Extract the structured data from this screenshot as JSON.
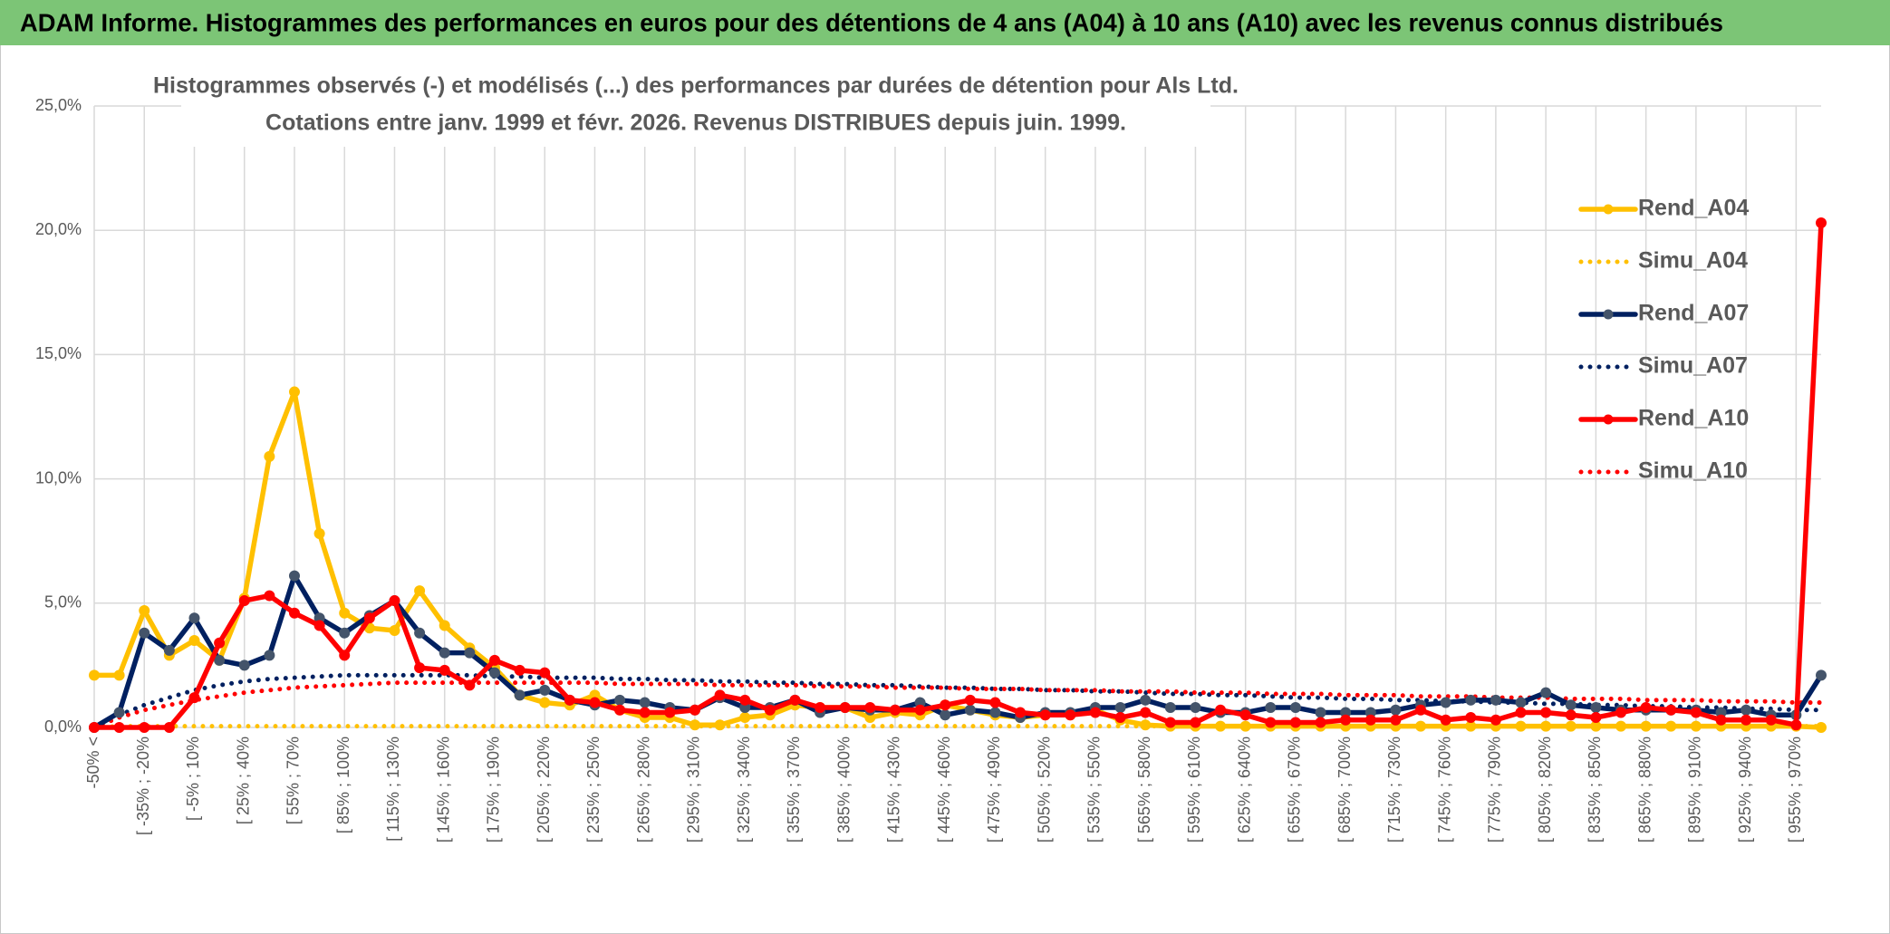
{
  "header": {
    "title": "ADAM Informe. Histogrammes des performances en euros pour des détentions de 4 ans (A04) à 10 ans (A10) avec les revenus connus distribués"
  },
  "chart_data": {
    "type": "line",
    "title": "Histogrammes observés (-) et modélisés (...) des performances par durées de détention pour Als Ltd.",
    "subtitle": "Cotations entre janv. 1999 et févr. 2026. Revenus DISTRIBUES depuis juin. 1999.",
    "categories": [
      "-50% <",
      null,
      "[ -35% ; -20%",
      null,
      "[ -5% ; 10%",
      null,
      "[ 25% ; 40%",
      null,
      "[ 55% ; 70%",
      null,
      "[ 85% ; 100%",
      null,
      "[ 115% ; 130%",
      null,
      "[ 145% ; 160%",
      null,
      "[ 175% ; 190%",
      null,
      "[ 205% ; 220%",
      null,
      "[ 235% ; 250%",
      null,
      "[ 265% ; 280%",
      null,
      "[ 295% ; 310%",
      null,
      "[ 325% ; 340%",
      null,
      "[ 355% ; 370%",
      null,
      "[ 385% ; 400%",
      null,
      "[ 415% ; 430%",
      null,
      "[ 445% ; 460%",
      null,
      "[ 475% ; 490%",
      null,
      "[ 505% ; 520%",
      null,
      "[ 535% ; 550%",
      null,
      "[ 565% ; 580%",
      null,
      "[ 595% ; 610%",
      null,
      "[ 625% ; 640%",
      null,
      "[ 655% ; 670%",
      null,
      "[ 685% ; 700%",
      null,
      "[ 715% ; 730%",
      null,
      "[ 745% ; 760%",
      null,
      "[ 775% ; 790%",
      null,
      "[ 805% ; 820%",
      null,
      "[ 835% ; 850%",
      null,
      "[ 865% ; 880%",
      null,
      "[ 895% ; 910%",
      null,
      "[ 925% ; 940%",
      null,
      "[ 955% ; 970%",
      null
    ],
    "series": [
      {
        "name": "Rend_A04",
        "color": "#ffc000",
        "line_style": "solid",
        "markers": true,
        "values": [
          2.1,
          2.1,
          4.7,
          2.9,
          3.5,
          2.7,
          5.2,
          10.9,
          13.5,
          7.8,
          4.6,
          4.0,
          3.9,
          5.5,
          4.1,
          3.2,
          2.4,
          1.3,
          1.0,
          0.9,
          1.3,
          0.7,
          0.4,
          0.4,
          0.1,
          0.1,
          0.4,
          0.5,
          0.9,
          0.8,
          0.8,
          0.4,
          0.6,
          0.5,
          0.9,
          0.7,
          0.5,
          0.4,
          0.5,
          0.5,
          0.7,
          0.3,
          0.1,
          0.05,
          0.05,
          0.05,
          0.05,
          0.05,
          0.05,
          0.05,
          0.05,
          0.05,
          0.05,
          0.05,
          0.05,
          0.05,
          0.05,
          0.05,
          0.05,
          0.05,
          0.05,
          0.05,
          0.05,
          0.05,
          0.05,
          0.05,
          0.05,
          0.05,
          0.05,
          0.0
        ]
      },
      {
        "name": "Simu_A04",
        "color": "#ffc000",
        "line_style": "dotted",
        "markers": false,
        "values": [
          0,
          0.05,
          0.05,
          0.05,
          0.05,
          0.05,
          0.05,
          0.05,
          0.05,
          0.05,
          0.05,
          0.05,
          0.05,
          0.05,
          0.05,
          0.05,
          0.05,
          0.05,
          0.05,
          0.05,
          0.05,
          0.05,
          0.05,
          0.05,
          0.05,
          0.05,
          0.05,
          0.05,
          0.05,
          0.05,
          0.05,
          0.05,
          0.05,
          0.05,
          0.05,
          0.05,
          0.05,
          0.05,
          0.05,
          0.05,
          0.05,
          0.05,
          0.05,
          0.05,
          0.05,
          0.05,
          0.05,
          0.05,
          0.05,
          0.05,
          0.05,
          0.05,
          0.05,
          0.05,
          0.05,
          0.05,
          0.05,
          0.05,
          0.05,
          0.05,
          0.05,
          0.05,
          0.05,
          0.05,
          0.05,
          0.05,
          0.05,
          0.05,
          0.05,
          0.05
        ]
      },
      {
        "name": "Rend_A07",
        "color": "#002060",
        "marker_color": "#44546a",
        "line_style": "solid",
        "markers": true,
        "values": [
          0,
          0.6,
          3.8,
          3.1,
          4.4,
          2.7,
          2.5,
          2.9,
          6.1,
          4.4,
          3.8,
          4.5,
          5.1,
          3.8,
          3.0,
          3.0,
          2.2,
          1.3,
          1.5,
          1.1,
          0.9,
          1.1,
          1.0,
          0.8,
          0.7,
          1.2,
          0.8,
          0.8,
          1.1,
          0.6,
          0.8,
          0.7,
          0.7,
          1.0,
          0.5,
          0.7,
          0.6,
          0.4,
          0.6,
          0.6,
          0.8,
          0.8,
          1.1,
          0.8,
          0.8,
          0.6,
          0.6,
          0.8,
          0.8,
          0.6,
          0.6,
          0.6,
          0.7,
          0.9,
          1.0,
          1.1,
          1.1,
          1.0,
          1.4,
          0.9,
          0.8,
          0.7,
          0.7,
          0.7,
          0.7,
          0.6,
          0.7,
          0.5,
          0.5,
          2.1
        ]
      },
      {
        "name": "Simu_A07",
        "color": "#002060",
        "line_style": "dotted",
        "markers": false,
        "values": [
          0,
          0.5,
          0.9,
          1.2,
          1.5,
          1.7,
          1.85,
          1.95,
          2.0,
          2.05,
          2.1,
          2.1,
          2.1,
          2.1,
          2.1,
          2.1,
          2.05,
          2.05,
          2.0,
          2.0,
          2.0,
          1.95,
          1.95,
          1.9,
          1.9,
          1.85,
          1.85,
          1.8,
          1.8,
          1.75,
          1.75,
          1.7,
          1.7,
          1.65,
          1.6,
          1.6,
          1.55,
          1.55,
          1.5,
          1.5,
          1.45,
          1.45,
          1.4,
          1.35,
          1.35,
          1.3,
          1.3,
          1.25,
          1.2,
          1.2,
          1.15,
          1.15,
          1.1,
          1.1,
          1.05,
          1.05,
          1.0,
          1.0,
          0.95,
          0.95,
          0.9,
          0.9,
          0.85,
          0.85,
          0.8,
          0.8,
          0.75,
          0.75,
          0.7,
          0.7
        ]
      },
      {
        "name": "Rend_A10",
        "color": "#ff0000",
        "line_style": "solid",
        "markers": true,
        "values": [
          0,
          0,
          0,
          0,
          1.2,
          3.4,
          5.1,
          5.3,
          4.6,
          4.1,
          2.9,
          4.4,
          5.1,
          2.4,
          2.3,
          1.7,
          2.7,
          2.3,
          2.2,
          1.1,
          1.0,
          0.7,
          0.6,
          0.6,
          0.7,
          1.3,
          1.1,
          0.7,
          1.1,
          0.8,
          0.8,
          0.8,
          0.7,
          0.7,
          0.9,
          1.1,
          1.0,
          0.6,
          0.5,
          0.5,
          0.6,
          0.4,
          0.6,
          0.2,
          0.2,
          0.7,
          0.5,
          0.2,
          0.2,
          0.2,
          0.3,
          0.3,
          0.3,
          0.7,
          0.3,
          0.4,
          0.3,
          0.6,
          0.6,
          0.5,
          0.4,
          0.6,
          0.8,
          0.7,
          0.6,
          0.3,
          0.3,
          0.3,
          0.1,
          20.3
        ]
      },
      {
        "name": "Simu_A10",
        "color": "#ff0000",
        "line_style": "dotted",
        "markers": false,
        "values": [
          0,
          0.4,
          0.7,
          0.9,
          1.1,
          1.25,
          1.4,
          1.5,
          1.6,
          1.65,
          1.7,
          1.75,
          1.8,
          1.8,
          1.8,
          1.8,
          1.8,
          1.8,
          1.8,
          1.8,
          1.8,
          1.75,
          1.75,
          1.75,
          1.75,
          1.7,
          1.7,
          1.7,
          1.7,
          1.65,
          1.65,
          1.65,
          1.6,
          1.6,
          1.6,
          1.55,
          1.55,
          1.55,
          1.5,
          1.5,
          1.5,
          1.45,
          1.45,
          1.45,
          1.4,
          1.4,
          1.4,
          1.35,
          1.35,
          1.35,
          1.3,
          1.3,
          1.3,
          1.25,
          1.25,
          1.25,
          1.2,
          1.2,
          1.2,
          1.15,
          1.15,
          1.15,
          1.1,
          1.1,
          1.1,
          1.05,
          1.05,
          1.05,
          1.0,
          1.0
        ]
      }
    ],
    "ylim": [
      0,
      25
    ],
    "yticks": [
      {
        "value": 0,
        "label": "0,0%"
      },
      {
        "value": 5,
        "label": "5,0%"
      },
      {
        "value": 10,
        "label": "10,0%"
      },
      {
        "value": 15,
        "label": "15,0%"
      },
      {
        "value": 20,
        "label": "20,0%"
      },
      {
        "value": 25,
        "label": "25,0%"
      }
    ],
    "grid": true,
    "legend": "right"
  }
}
